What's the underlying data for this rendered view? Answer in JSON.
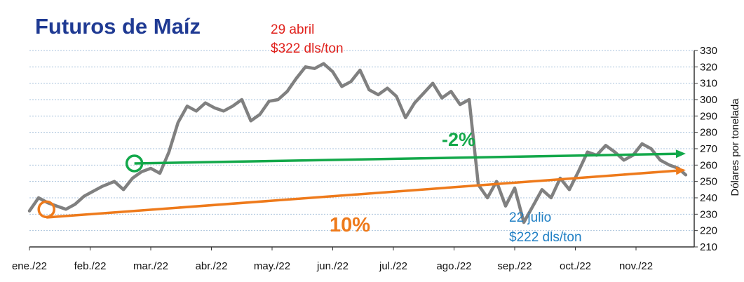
{
  "chart_data": {
    "type": "line",
    "title": "Futuros de Maíz",
    "ylabel": "Dólares por tonelada",
    "xlabel": "",
    "ylim": [
      210,
      330
    ],
    "yticks": [
      210,
      220,
      230,
      240,
      250,
      260,
      270,
      280,
      290,
      300,
      310,
      320,
      330
    ],
    "y_axis_side": "right",
    "grid": "horizontal-dashed",
    "x_tick_labels": [
      "ene./22",
      "feb./22",
      "mar./22",
      "abr./22",
      "may./22",
      "jun./22",
      "jul./22",
      "ago./22",
      "sep./22",
      "oct./22",
      "nov./22"
    ],
    "colors": {
      "title": "#1f3a93",
      "series": "#808080",
      "high_label": "#e0201b",
      "low_label": "#1f7fc4",
      "green": "#13a84a",
      "orange": "#ee7a1b"
    },
    "series": [
      {
        "name": "",
        "x": [
          0,
          0.15,
          0.3,
          0.45,
          0.6,
          0.75,
          0.9,
          1.05,
          1.2,
          1.4,
          1.55,
          1.7,
          1.85,
          2.0,
          2.15,
          2.3,
          2.45,
          2.6,
          2.75,
          2.9,
          3.05,
          3.2,
          3.35,
          3.5,
          3.65,
          3.8,
          3.95,
          4.1,
          4.25,
          4.4,
          4.55,
          4.7,
          4.85,
          5.0,
          5.15,
          5.3,
          5.45,
          5.6,
          5.75,
          5.9,
          6.05,
          6.2,
          6.35,
          6.5,
          6.65,
          6.8,
          6.95,
          7.1,
          7.25,
          7.4,
          7.55,
          7.7,
          7.85,
          8.0,
          8.15,
          8.3,
          8.45,
          8.6,
          8.75,
          8.9,
          9.05,
          9.2,
          9.35,
          9.5,
          9.65,
          9.8,
          9.95,
          10.1,
          10.25,
          10.4,
          10.55,
          10.7,
          10.82
        ],
        "values": [
          232,
          240,
          237,
          235,
          233,
          236,
          241,
          244,
          247,
          250,
          245,
          252,
          256,
          258,
          255,
          268,
          286,
          296,
          293,
          298,
          295,
          293,
          296,
          300,
          287,
          291,
          299,
          300,
          305,
          313,
          320,
          319,
          322,
          317,
          308,
          311,
          318,
          306,
          303,
          307,
          302,
          289,
          298,
          304,
          310,
          301,
          305,
          297,
          300,
          248,
          240,
          250,
          235,
          246,
          225,
          235,
          245,
          240,
          252,
          245,
          256,
          268,
          266,
          272,
          268,
          263,
          266,
          273,
          270,
          263,
          260,
          258,
          254
        ]
      }
    ],
    "annotations": {
      "high_date": "29 abril",
      "high_price": "$322 dls/ton",
      "low_date": "22 julio",
      "low_price": "$222 dls/ton",
      "green_pct": "-2%",
      "orange_pct": "10%"
    },
    "trend_lines": [
      {
        "name": "green",
        "from": [
          1.73,
          261
        ],
        "to": [
          10.82,
          267
        ]
      },
      {
        "name": "orange",
        "from": [
          0.28,
          228
        ],
        "to": [
          10.82,
          257
        ]
      }
    ],
    "markers": [
      {
        "name": "green-circle",
        "x": 1.73,
        "y": 261
      },
      {
        "name": "orange-circle",
        "x": 0.28,
        "y": 233
      }
    ]
  }
}
